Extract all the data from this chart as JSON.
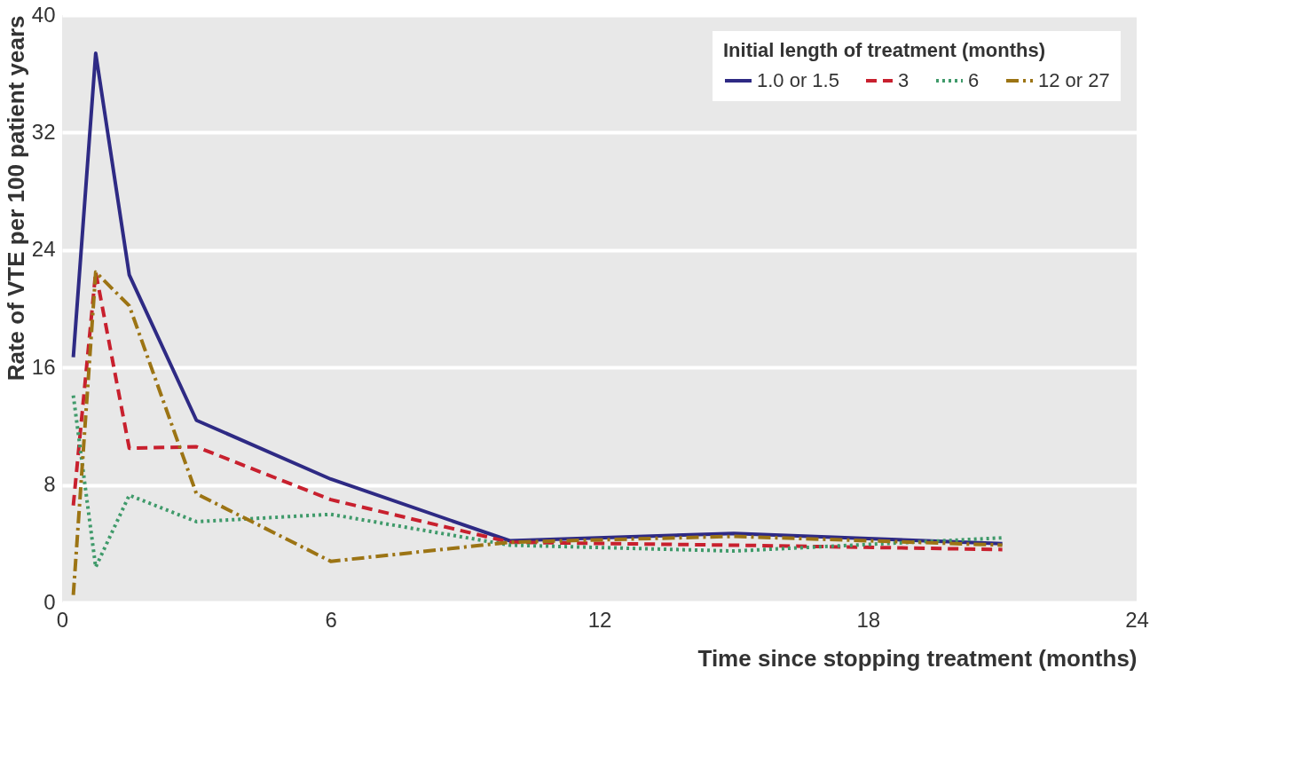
{
  "chart_data": {
    "type": "line",
    "xlabel": "Time since stopping treatment (months)",
    "ylabel": "Rate of VTE per 100 patient years",
    "legend_title": "Initial length of treatment (months)",
    "x": [
      0.25,
      0.75,
      1.5,
      3,
      6,
      10,
      15,
      21
    ],
    "series": [
      {
        "name": "1.0 or 1.5",
        "color": "#2e2a84",
        "line_style": "solid",
        "values": [
          16.7,
          37.4,
          22.3,
          12.4,
          8.4,
          4.2,
          4.7,
          4.0
        ]
      },
      {
        "name": "3",
        "color": "#c8202e",
        "line_style": "dashed",
        "values": [
          6.6,
          22.5,
          10.5,
          10.6,
          7.0,
          4.1,
          3.9,
          3.6
        ]
      },
      {
        "name": "6",
        "color": "#3f9a6a",
        "line_style": "dotted",
        "values": [
          14.1,
          2.4,
          7.3,
          5.5,
          6.0,
          3.9,
          3.5,
          4.4
        ]
      },
      {
        "name": "12 or 27",
        "color": "#9c7414",
        "line_style": "dashdot",
        "values": [
          0.5,
          22.5,
          20.2,
          7.4,
          2.8,
          4.1,
          4.5,
          3.9
        ]
      }
    ],
    "xlim": [
      0,
      24
    ],
    "xticks": [
      0,
      6,
      12,
      18,
      24
    ],
    "ylim": [
      0,
      40
    ],
    "yticks": [
      0,
      8,
      16,
      24,
      32,
      40
    ],
    "grid": "y",
    "legend": "top right",
    "marker": "none"
  }
}
